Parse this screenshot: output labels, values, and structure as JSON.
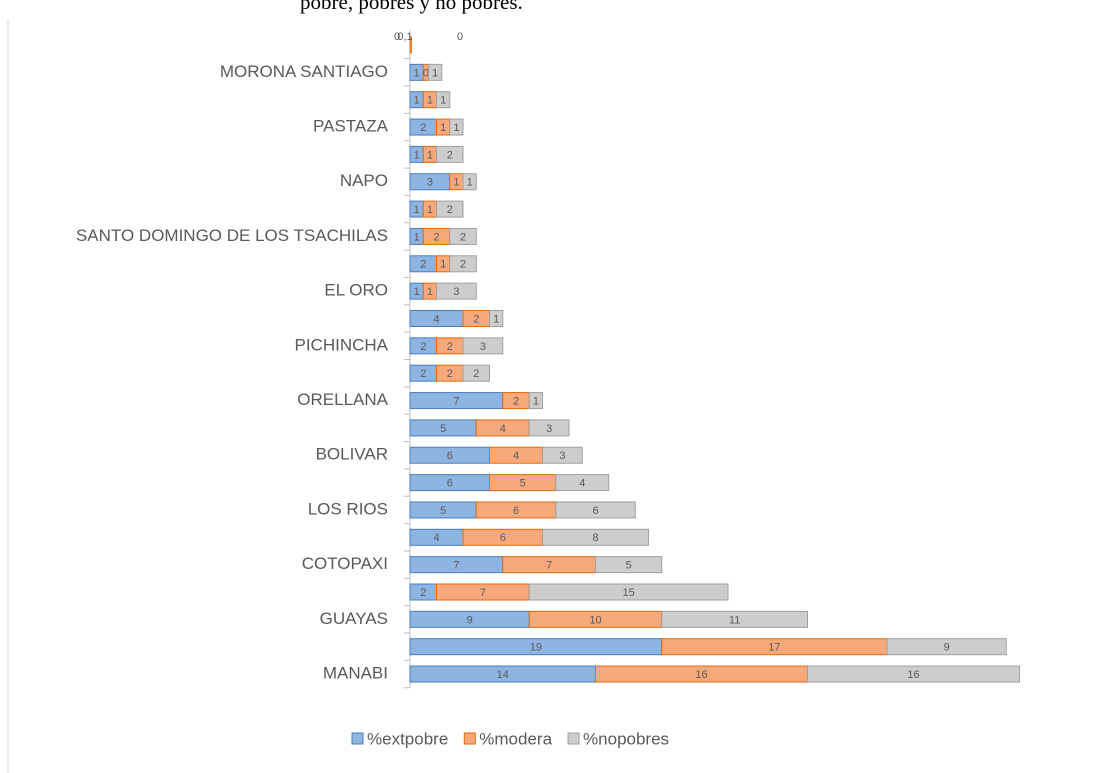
{
  "chart_data": {
    "type": "stacked-barh",
    "title": "pobre, pobres y no pobres.",
    "categories": [
      null,
      "MORONA SANTIAGO",
      null,
      "PASTAZA",
      null,
      "NAPO",
      null,
      "SANTO DOMINGO DE LOS TSACHILAS",
      null,
      "EL ORO",
      null,
      "PICHINCHA",
      null,
      "ORELLANA",
      null,
      "BOLIVAR",
      null,
      "LOS RIOS",
      null,
      "COTOPAXI",
      null,
      "GUAYAS",
      null,
      "MANABI"
    ],
    "series": [
      {
        "name": "%extpobre",
        "color": "#8eb4e3",
        "stroke": "#4a7ebb",
        "values": [
          0,
          1,
          1,
          2,
          1,
          3,
          1,
          1,
          2,
          1,
          4,
          2,
          2,
          7,
          5,
          6,
          6,
          5,
          4,
          7,
          2,
          9,
          19,
          14
        ],
        "value_labels": [
          "0",
          "1",
          "1",
          "2",
          "1",
          "3",
          "1",
          "1",
          "2",
          "1",
          "4",
          "2",
          "2",
          "7",
          "5",
          "6",
          "6",
          "5",
          "4",
          "7",
          "2",
          "9",
          "19",
          "14"
        ]
      },
      {
        "name": "%modera",
        "color": "#f7a97c",
        "stroke": "#e46c0a",
        "values": [
          0.1,
          0.4,
          1,
          1,
          1,
          1,
          1,
          2,
          1,
          1,
          2,
          2,
          2,
          2,
          4,
          4,
          5,
          6,
          6,
          7,
          7,
          10,
          17,
          16
        ],
        "value_labels": [
          "0,1",
          "0",
          "1",
          "1",
          "1",
          "1",
          "1",
          "2",
          "1",
          "1",
          "2",
          "2",
          "2",
          "2",
          "4",
          "4",
          "5",
          "6",
          "6",
          "7",
          "7",
          "10",
          "17",
          "16"
        ]
      },
      {
        "name": "%nopobres",
        "color": "#cdcdcd",
        "stroke": "#a0a0a0",
        "values": [
          0,
          1,
          1,
          1,
          2,
          1,
          2,
          2,
          2,
          3,
          1,
          3,
          2,
          1,
          3,
          3,
          4,
          6,
          8,
          5,
          15,
          11,
          9,
          16
        ],
        "value_labels": [
          "0",
          "1",
          "1",
          "1",
          "2",
          "1",
          "2",
          "2",
          "2",
          "3",
          "1",
          "3",
          "2",
          "1",
          "3",
          "3",
          "4",
          "6",
          "8",
          "5",
          "15",
          "11",
          "9",
          "16"
        ]
      }
    ]
  }
}
